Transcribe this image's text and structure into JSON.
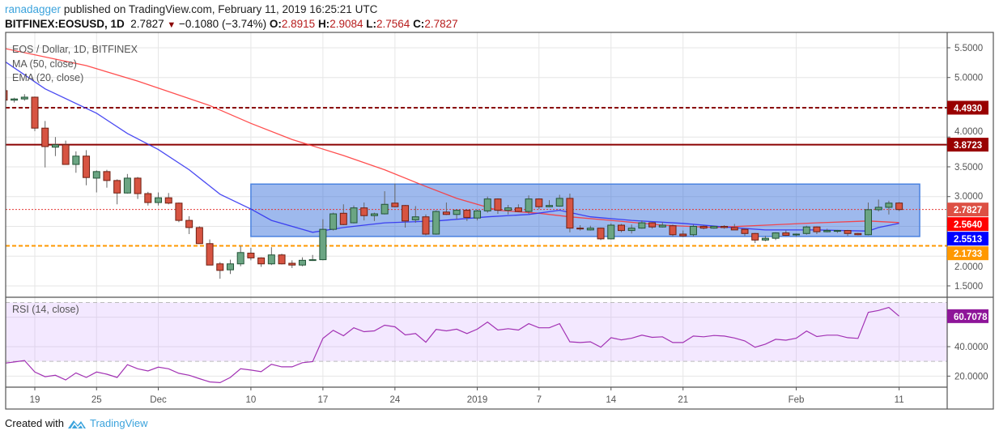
{
  "header": {
    "user": "ranadagger",
    "published": "published on TradingView.com, February 11, 2019 16:25:21 UTC",
    "symbol": "BITFINEX:EOSUSD, 1D",
    "last": "2.7827",
    "change": "−0.1080 (−3.74%)",
    "o_label": "O:",
    "o": "2.8915",
    "h_label": "H:",
    "h": "2.9084",
    "l_label": "L:",
    "l": "2.7564",
    "c_label": "C:",
    "c": "2.7827"
  },
  "legend": {
    "title": "EOS / Dollar, 1D, BITFINEX",
    "ma": "MA (50, close)",
    "ema": "EMA (20, close)",
    "rsi": "RSI (14, close)"
  },
  "footer": {
    "created_with": "Created with",
    "brand": "TradingView"
  },
  "colors": {
    "up_fill": "#6ba583",
    "up_border": "#225437",
    "down_fill": "#d75442",
    "down_border": "#6f1f12",
    "ma50": "#ff3030",
    "ema20": "#2a2af0",
    "rsi": "#a232b4",
    "box": "#4a82e0",
    "resistance": "#8b0000",
    "support": "#ff9800"
  },
  "chart_data": [
    {
      "type": "candlestick",
      "title": "EOS / Dollar, 1D, BITFINEX",
      "ylim": [
        1.309,
        5.758
      ],
      "y_ticks": [
        "5.5000",
        "5.0000",
        "4.0000",
        "3.5000",
        "3.0000",
        "2.0000",
        "1.5000"
      ],
      "x_ticks": [
        {
          "date": "2018-11-19",
          "label": "19"
        },
        {
          "date": "2018-11-25",
          "label": "25"
        },
        {
          "date": "2018-12-01",
          "label": "Dec"
        },
        {
          "date": "2018-12-10",
          "label": "10"
        },
        {
          "date": "2018-12-17",
          "label": "17"
        },
        {
          "date": "2018-12-24",
          "label": "24"
        },
        {
          "date": "2019-01-01",
          "label": "2019"
        },
        {
          "date": "2019-01-07",
          "label": "7"
        },
        {
          "date": "2019-01-14",
          "label": "14"
        },
        {
          "date": "2019-01-21",
          "label": "21"
        },
        {
          "date": "2019-02-01",
          "label": "Feb"
        },
        {
          "date": "2019-02-11",
          "label": "11"
        }
      ],
      "grid": true,
      "candles_columns": [
        "date",
        "open",
        "high",
        "low",
        "close"
      ],
      "candles": [
        [
          "2018-11-16",
          4.78,
          4.8,
          4.6,
          4.62
        ],
        [
          "2018-11-17",
          4.62,
          4.66,
          4.58,
          4.64
        ],
        [
          "2018-11-18",
          4.64,
          4.72,
          4.61,
          4.67
        ],
        [
          "2018-11-19",
          4.67,
          4.68,
          4.1,
          4.15
        ],
        [
          "2018-11-20",
          4.15,
          4.27,
          3.49,
          3.84
        ],
        [
          "2018-11-21",
          3.83,
          4.0,
          3.68,
          3.87
        ],
        [
          "2018-11-22",
          3.87,
          3.94,
          3.54,
          3.54
        ],
        [
          "2018-11-23",
          3.54,
          3.76,
          3.4,
          3.68
        ],
        [
          "2018-11-24",
          3.68,
          3.78,
          3.19,
          3.32
        ],
        [
          "2018-11-25",
          3.31,
          3.44,
          3.07,
          3.42
        ],
        [
          "2018-11-26",
          3.42,
          3.45,
          3.15,
          3.27
        ],
        [
          "2018-11-27",
          3.27,
          3.29,
          2.87,
          3.06
        ],
        [
          "2018-11-28",
          3.06,
          3.38,
          3.05,
          3.31
        ],
        [
          "2018-11-29",
          3.31,
          3.33,
          2.96,
          3.05
        ],
        [
          "2018-11-30",
          3.05,
          3.08,
          2.85,
          2.9
        ],
        [
          "2018-12-01",
          2.9,
          3.07,
          2.85,
          2.98
        ],
        [
          "2018-12-02",
          2.98,
          3.06,
          2.87,
          2.89
        ],
        [
          "2018-12-03",
          2.89,
          2.9,
          2.57,
          2.6
        ],
        [
          "2018-12-04",
          2.6,
          2.67,
          2.37,
          2.48
        ],
        [
          "2018-12-05",
          2.48,
          2.5,
          2.21,
          2.21
        ],
        [
          "2018-12-06",
          2.21,
          2.28,
          1.85,
          1.85
        ],
        [
          "2018-12-07",
          1.87,
          1.9,
          1.62,
          1.76
        ],
        [
          "2018-12-08",
          1.77,
          1.94,
          1.7,
          1.87
        ],
        [
          "2018-12-09",
          1.87,
          2.17,
          1.83,
          2.06
        ],
        [
          "2018-12-10",
          2.05,
          2.14,
          1.93,
          1.97
        ],
        [
          "2018-12-11",
          1.97,
          1.98,
          1.82,
          1.87
        ],
        [
          "2018-12-12",
          1.87,
          2.15,
          1.85,
          2.02
        ],
        [
          "2018-12-13",
          2.02,
          2.04,
          1.86,
          1.87
        ],
        [
          "2018-12-14",
          1.88,
          1.93,
          1.8,
          1.85
        ],
        [
          "2018-12-15",
          1.85,
          1.98,
          1.83,
          1.93
        ],
        [
          "2018-12-16",
          1.93,
          2.02,
          1.92,
          1.94
        ],
        [
          "2018-12-17",
          1.94,
          2.62,
          1.93,
          2.45
        ],
        [
          "2018-12-18",
          2.45,
          2.73,
          2.43,
          2.71
        ],
        [
          "2018-12-19",
          2.72,
          2.87,
          2.52,
          2.53
        ],
        [
          "2018-12-20",
          2.56,
          2.85,
          2.55,
          2.81
        ],
        [
          "2018-12-21",
          2.81,
          2.9,
          2.6,
          2.68
        ],
        [
          "2018-12-22",
          2.68,
          2.73,
          2.59,
          2.71
        ],
        [
          "2018-12-23",
          2.71,
          3.09,
          2.7,
          2.87
        ],
        [
          "2018-12-24",
          2.89,
          3.22,
          2.82,
          2.83
        ],
        [
          "2018-12-25",
          2.85,
          2.86,
          2.48,
          2.59
        ],
        [
          "2018-12-26",
          2.61,
          2.84,
          2.56,
          2.66
        ],
        [
          "2018-12-27",
          2.66,
          2.7,
          2.35,
          2.37
        ],
        [
          "2018-12-28",
          2.37,
          2.77,
          2.36,
          2.75
        ],
        [
          "2018-12-29",
          2.74,
          2.9,
          2.69,
          2.7
        ],
        [
          "2018-12-30",
          2.7,
          2.78,
          2.62,
          2.77
        ],
        [
          "2018-12-31",
          2.77,
          2.78,
          2.59,
          2.65
        ],
        [
          "2019-01-01",
          2.64,
          2.78,
          2.6,
          2.76
        ],
        [
          "2019-01-02",
          2.76,
          3.0,
          2.73,
          2.96
        ],
        [
          "2019-01-03",
          2.96,
          2.97,
          2.71,
          2.77
        ],
        [
          "2019-01-04",
          2.77,
          2.86,
          2.7,
          2.81
        ],
        [
          "2019-01-05",
          2.81,
          2.87,
          2.74,
          2.75
        ],
        [
          "2019-01-06",
          2.75,
          3.02,
          2.71,
          2.96
        ],
        [
          "2019-01-07",
          2.96,
          2.97,
          2.79,
          2.83
        ],
        [
          "2019-01-08",
          2.83,
          2.94,
          2.82,
          2.85
        ],
        [
          "2019-01-09",
          2.84,
          3.03,
          2.83,
          2.97
        ],
        [
          "2019-01-10",
          2.97,
          3.05,
          2.4,
          2.47
        ],
        [
          "2019-01-11",
          2.47,
          2.52,
          2.43,
          2.46
        ],
        [
          "2019-01-12",
          2.44,
          2.51,
          2.43,
          2.47
        ],
        [
          "2019-01-13",
          2.47,
          2.48,
          2.27,
          2.29
        ],
        [
          "2019-01-14",
          2.29,
          2.55,
          2.28,
          2.52
        ],
        [
          "2019-01-15",
          2.52,
          2.54,
          2.4,
          2.43
        ],
        [
          "2019-01-16",
          2.43,
          2.53,
          2.38,
          2.47
        ],
        [
          "2019-01-17",
          2.47,
          2.6,
          2.46,
          2.56
        ],
        [
          "2019-01-18",
          2.56,
          2.57,
          2.46,
          2.49
        ],
        [
          "2019-01-19",
          2.49,
          2.57,
          2.48,
          2.52
        ],
        [
          "2019-01-20",
          2.51,
          2.53,
          2.33,
          2.36
        ],
        [
          "2019-01-21",
          2.37,
          2.43,
          2.32,
          2.34
        ],
        [
          "2019-01-22",
          2.36,
          2.53,
          2.33,
          2.5
        ],
        [
          "2019-01-23",
          2.5,
          2.52,
          2.45,
          2.47
        ],
        [
          "2019-01-24",
          2.47,
          2.51,
          2.46,
          2.5
        ],
        [
          "2019-01-25",
          2.5,
          2.52,
          2.46,
          2.48
        ],
        [
          "2019-01-26",
          2.48,
          2.54,
          2.44,
          2.44
        ],
        [
          "2019-01-27",
          2.45,
          2.47,
          2.34,
          2.38
        ],
        [
          "2019-01-28",
          2.38,
          2.39,
          2.22,
          2.27
        ],
        [
          "2019-01-29",
          2.27,
          2.34,
          2.25,
          2.3
        ],
        [
          "2019-01-30",
          2.3,
          2.4,
          2.27,
          2.39
        ],
        [
          "2019-01-31",
          2.39,
          2.43,
          2.34,
          2.35
        ],
        [
          "2019-02-01",
          2.36,
          2.38,
          2.33,
          2.37
        ],
        [
          "2019-02-02",
          2.38,
          2.51,
          2.36,
          2.49
        ],
        [
          "2019-02-03",
          2.49,
          2.5,
          2.37,
          2.41
        ],
        [
          "2019-02-04",
          2.41,
          2.46,
          2.4,
          2.43
        ],
        [
          "2019-02-05",
          2.42,
          2.44,
          2.39,
          2.43
        ],
        [
          "2019-02-06",
          2.43,
          2.44,
          2.34,
          2.38
        ],
        [
          "2019-02-07",
          2.38,
          2.39,
          2.35,
          2.36
        ],
        [
          "2019-02-08",
          2.36,
          2.9,
          2.35,
          2.78
        ],
        [
          "2019-02-09",
          2.78,
          2.95,
          2.75,
          2.82
        ],
        [
          "2019-02-10",
          2.82,
          2.93,
          2.7,
          2.89
        ],
        [
          "2019-02-11",
          2.8915,
          2.9084,
          2.7564,
          2.7827
        ]
      ],
      "ma50": [
        [
          "2018-11-16",
          5.49
        ],
        [
          "2018-11-24",
          5.2
        ],
        [
          "2018-11-29",
          4.94
        ],
        [
          "2018-12-06",
          4.53
        ],
        [
          "2018-12-10",
          4.23
        ],
        [
          "2018-12-14",
          3.96
        ],
        [
          "2018-12-19",
          3.69
        ],
        [
          "2018-12-23",
          3.45
        ],
        [
          "2018-12-27",
          3.17
        ],
        [
          "2018-12-30",
          2.97
        ],
        [
          "2019-01-03",
          2.77
        ],
        [
          "2019-01-07",
          2.72
        ],
        [
          "2019-01-10",
          2.66
        ],
        [
          "2019-01-14",
          2.6
        ],
        [
          "2019-01-19",
          2.52
        ],
        [
          "2019-01-24",
          2.48
        ],
        [
          "2019-01-29",
          2.52
        ],
        [
          "2019-02-03",
          2.56
        ],
        [
          "2019-02-08",
          2.59
        ],
        [
          "2019-02-11",
          2.564
        ]
      ],
      "ema20": [
        [
          "2018-11-16",
          5.28
        ],
        [
          "2018-11-20",
          4.81
        ],
        [
          "2018-11-25",
          4.4
        ],
        [
          "2018-11-28",
          4.06
        ],
        [
          "2018-12-01",
          3.79
        ],
        [
          "2018-12-04",
          3.45
        ],
        [
          "2018-12-07",
          3.04
        ],
        [
          "2018-12-10",
          2.79
        ],
        [
          "2018-12-12",
          2.6
        ],
        [
          "2018-12-16",
          2.4
        ],
        [
          "2018-12-19",
          2.48
        ],
        [
          "2018-12-23",
          2.56
        ],
        [
          "2018-12-28",
          2.59
        ],
        [
          "2019-01-02",
          2.66
        ],
        [
          "2019-01-06",
          2.7
        ],
        [
          "2019-01-09",
          2.77
        ],
        [
          "2019-01-12",
          2.66
        ],
        [
          "2019-01-16",
          2.6
        ],
        [
          "2019-01-21",
          2.55
        ],
        [
          "2019-01-25",
          2.49
        ],
        [
          "2019-01-29",
          2.44
        ],
        [
          "2019-02-03",
          2.44
        ],
        [
          "2019-02-08",
          2.42
        ],
        [
          "2019-02-09",
          2.48
        ],
        [
          "2019-02-11",
          2.5513
        ]
      ],
      "hlines": [
        {
          "value": 4.493,
          "label": "4.4930",
          "style": "dashed",
          "color": "#8b0000",
          "badge": "#990000"
        },
        {
          "value": 3.8723,
          "label": "3.8723",
          "style": "solid",
          "color": "#8b0000",
          "badge": "#990000"
        },
        {
          "value": 2.1733,
          "label": "2.1733",
          "style": "dashed",
          "color": "#ff9800",
          "badge": "#ff9800"
        },
        {
          "value": 2.7827,
          "label": "2.7827",
          "style": "dotted",
          "color": "#e53935",
          "badge": "#dd5044"
        }
      ],
      "value_badges": [
        {
          "value": 2.564,
          "label": "2.5640",
          "color": "#ff0000"
        },
        {
          "value": 2.5513,
          "label": "2.5513",
          "color": "#0000ff"
        }
      ],
      "range_box": {
        "from": "2018-12-10",
        "to": "2019-02-13",
        "top": 3.21,
        "bottom": 2.33
      }
    },
    {
      "type": "line",
      "title": "RSI (14, close)",
      "ylim": [
        12.5,
        73
      ],
      "y_ticks": [
        "40.0000",
        "20.0000"
      ],
      "band": [
        30,
        70
      ],
      "last_label": "60.7078",
      "start_date": "2018-11-16",
      "values": [
        28.7,
        29.6,
        30.6,
        22.8,
        19.6,
        20.6,
        17.4,
        22.2,
        19.1,
        22.8,
        21.3,
        19.1,
        27.8,
        25,
        23.5,
        26.1,
        25,
        21.9,
        20.6,
        18.3,
        16.1,
        15.6,
        19.1,
        25,
        24.1,
        23,
        28,
        26.3,
        26.3,
        29.1,
        29.8,
        45.6,
        51.1,
        47.4,
        52.8,
        50.2,
        50.7,
        54.6,
        53.5,
        48,
        48.9,
        43,
        51.7,
        50.7,
        51.9,
        48.9,
        51.9,
        56.7,
        51.3,
        52.2,
        51.3,
        55.6,
        52.8,
        52.8,
        55.6,
        43.3,
        42.8,
        43.3,
        39.6,
        46.1,
        44.6,
        45.7,
        47.8,
        46.3,
        46.7,
        42.8,
        42.8,
        47.2,
        46.7,
        47.6,
        47.2,
        45.9,
        43.9,
        39.6,
        41.7,
        45,
        44.4,
        45.7,
        50.6,
        46.9,
        47.8,
        47.8,
        46.1,
        45.6,
        63.3,
        64.6,
        66.7,
        60.7078
      ]
    }
  ]
}
